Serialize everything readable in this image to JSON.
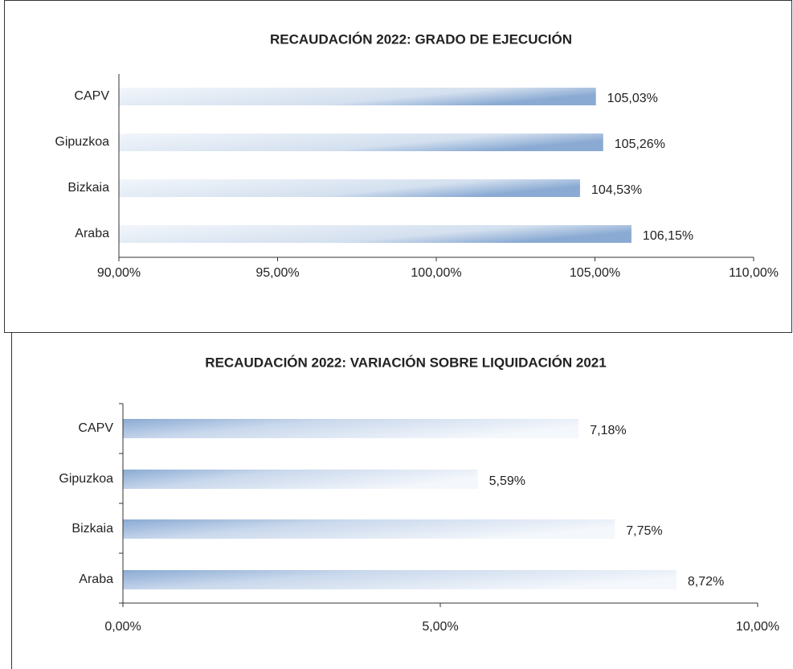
{
  "chart_data": [
    {
      "type": "bar",
      "title": "RECAUDACIÓN 2022: GRADO DE EJECUCIÓN",
      "categories": [
        "CAPV",
        "Gipuzkoa",
        "Bizkaia",
        "Araba"
      ],
      "values": [
        105.03,
        105.26,
        104.53,
        106.15
      ],
      "value_labels": [
        "105,03%",
        "105,26%",
        "104,53%",
        "106,15%"
      ],
      "color": "#8aaad3",
      "xlim": [
        90,
        110
      ],
      "xticks": [
        {
          "value": 90,
          "label": "90,00%"
        },
        {
          "value": 95,
          "label": "95,00%"
        },
        {
          "value": 100,
          "label": "100,00%"
        },
        {
          "value": 105,
          "label": "105,00%"
        },
        {
          "value": 110,
          "label": "110,00%"
        }
      ]
    },
    {
      "type": "bar",
      "title": "RECAUDACIÓN 2022: VARIACIÓN SOBRE LIQUIDACIÓN 2021",
      "categories": [
        "CAPV",
        "Gipuzkoa",
        "Bizkaia",
        "Araba"
      ],
      "values": [
        7.18,
        5.59,
        7.75,
        8.72
      ],
      "value_labels": [
        "7,18%",
        "5,59%",
        "7,75%",
        "8,72%"
      ],
      "color": "#8aaad3",
      "xlim": [
        0,
        10
      ],
      "xticks": [
        {
          "value": 0,
          "label": "0,00%"
        },
        {
          "value": 5,
          "label": "5,00%"
        },
        {
          "value": 10,
          "label": "10,00%"
        }
      ]
    }
  ]
}
